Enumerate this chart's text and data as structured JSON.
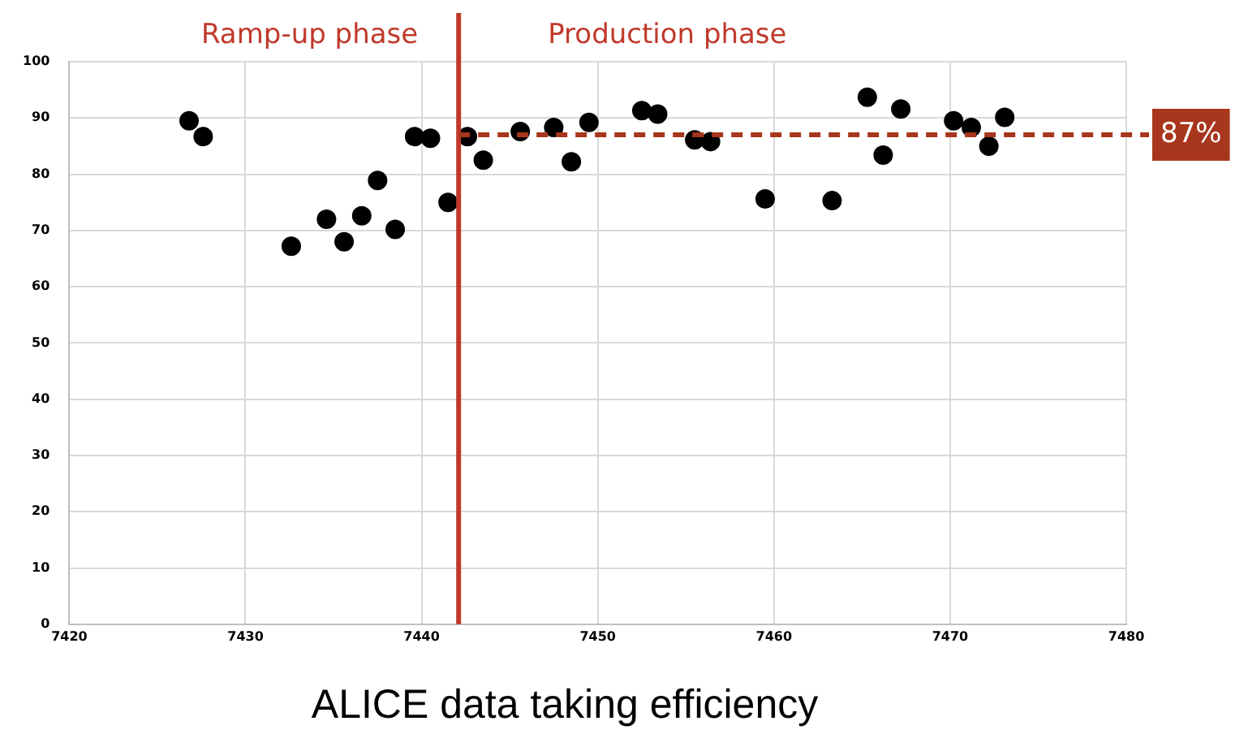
{
  "chart_data": {
    "type": "scatter",
    "title": "ALICE data taking efficiency",
    "annotations": [
      "Ramp-up phase",
      "Production phase"
    ],
    "x": [
      7426.8,
      7427.6,
      7432.6,
      7434.6,
      7435.6,
      7436.6,
      7437.5,
      7438.5,
      7439.6,
      7440.5,
      7441.5,
      7442.6,
      7443.5,
      7445.6,
      7447.5,
      7448.5,
      7449.5,
      7452.5,
      7453.4,
      7455.5,
      7456.4,
      7459.5,
      7463.3,
      7465.3,
      7466.2,
      7467.2,
      7470.2,
      7471.2,
      7472.2,
      7473.1
    ],
    "series": [
      {
        "color": "#000000",
        "values": [
          89.5,
          86.7,
          67.2,
          72,
          68,
          72.6,
          78.9,
          70.2,
          86.7,
          86.4,
          75,
          86.7,
          82.5,
          87.6,
          88.3,
          82.2,
          89.2,
          91.3,
          90.7,
          86.1,
          85.8,
          75.6,
          75.3,
          93.7,
          83.4,
          91.6,
          89.5,
          88.3,
          85,
          90.1
        ]
      }
    ],
    "xlim": [
      7420,
      7480
    ],
    "xticks": [
      7420,
      7430,
      7440,
      7450,
      7460,
      7470,
      7480
    ],
    "ylim": [
      0,
      100
    ],
    "yticks": [
      0,
      10,
      20,
      30,
      40,
      50,
      60,
      70,
      80,
      90,
      100
    ],
    "ref_lines": [
      {
        "axis": "x",
        "value": 7442.1,
        "color": "#c0392b",
        "line_style": "solid"
      },
      {
        "axis": "y",
        "value": 87,
        "label": "87%",
        "color": "#a8361c",
        "line_style": "dashed"
      }
    ],
    "grid": true,
    "legend": false,
    "marker": "circle"
  }
}
